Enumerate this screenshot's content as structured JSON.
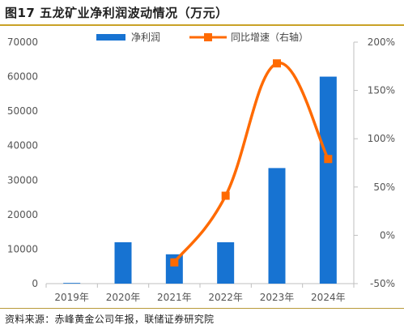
{
  "title": "图17 五龙矿业净利润波动情况（万元）",
  "source": "资料来源：赤峰黄金公司年报，联储证券研究院",
  "colors": {
    "bar": "#1773d2",
    "line": "#ff6a00",
    "rule_top": "#c9a227",
    "rule_bottom": "#b89a3a"
  },
  "chart_data": {
    "type": "bar+line",
    "categories": [
      "2019年",
      "2020年",
      "2021年",
      "2022年",
      "2023年",
      "2024年"
    ],
    "series": [
      {
        "name": "净利润",
        "type": "bar",
        "axis": "left",
        "values": [
          200,
          12000,
          8500,
          12000,
          33500,
          60000
        ]
      },
      {
        "name": "同比增速（右轴）",
        "type": "line",
        "axis": "right",
        "values": [
          null,
          null,
          -0.28,
          0.41,
          1.78,
          0.79
        ]
      }
    ],
    "left_axis": {
      "ylim": [
        0,
        70000
      ],
      "ticks": [
        "0",
        "10000",
        "20000",
        "30000",
        "40000",
        "50000",
        "60000",
        "70000"
      ]
    },
    "right_axis": {
      "ylim": [
        -0.5,
        2.0
      ],
      "ticks": [
        "-50%",
        "0%",
        "50%",
        "100%",
        "150%",
        "200%"
      ]
    },
    "legend_placement": "top",
    "grid": false
  }
}
